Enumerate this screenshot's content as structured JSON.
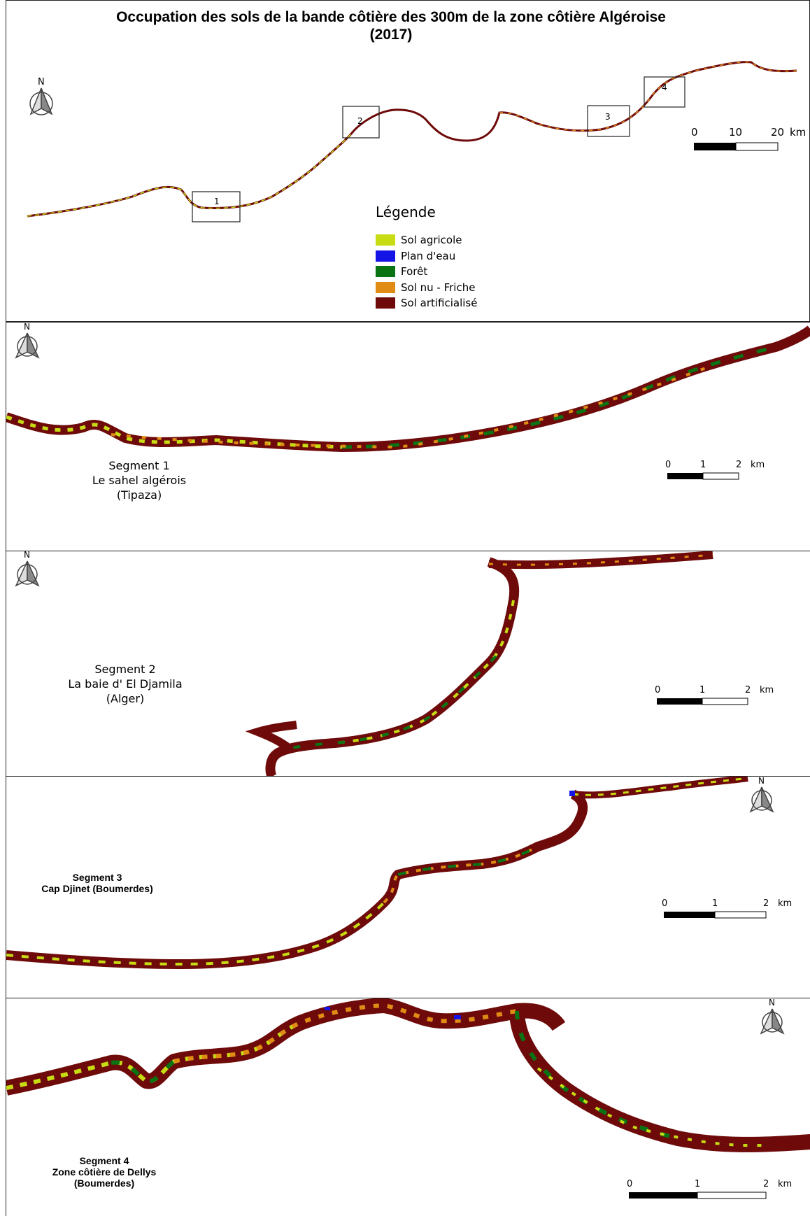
{
  "overview": {
    "title_line1": "Occupation des sols de la bande côtière des 300m de la zone côtière Algéroise",
    "title_line2": "(2017)",
    "north_label": "N",
    "box_labels": [
      "1",
      "2",
      "3",
      "4"
    ],
    "scale": {
      "ticks": [
        "0",
        "10",
        "20"
      ],
      "unit": "km"
    }
  },
  "legend": {
    "title": "Légende",
    "items": [
      {
        "label": "Sol agricole",
        "color": "#c8dc14"
      },
      {
        "label": "Plan d'eau",
        "color": "#1414e6"
      },
      {
        "label": "Forêt",
        "color": "#0a7314"
      },
      {
        "label": "Sol nu - Friche",
        "color": "#e08c14"
      },
      {
        "label": "Sol artificialisé",
        "color": "#6e0a0a"
      }
    ]
  },
  "segments": [
    {
      "id": "s1",
      "north_label": "N",
      "lines": [
        "Segment 1",
        "Le sahel algérois",
        "(Tipaza)"
      ],
      "scale": {
        "ticks": [
          "0",
          "1",
          "2"
        ],
        "unit": "km"
      }
    },
    {
      "id": "s2",
      "north_label": "N",
      "lines": [
        "Segment 2",
        "La baie d' El Djamila",
        "(Alger)"
      ],
      "scale": {
        "ticks": [
          "0",
          "1",
          "2"
        ],
        "unit": "km"
      }
    },
    {
      "id": "s3",
      "north_label": "N",
      "lines": [
        "Segment 3",
        "Cap Djinet (Boumerdes)"
      ],
      "scale": {
        "ticks": [
          "0",
          "1",
          "2"
        ],
        "unit": "km"
      }
    },
    {
      "id": "s4",
      "north_label": "N",
      "lines": [
        "Segment 4",
        "Zone côtière de Dellys",
        "(Boumerdes)"
      ],
      "scale": {
        "ticks": [
          "0",
          "1",
          "2"
        ],
        "unit": "km"
      }
    }
  ]
}
